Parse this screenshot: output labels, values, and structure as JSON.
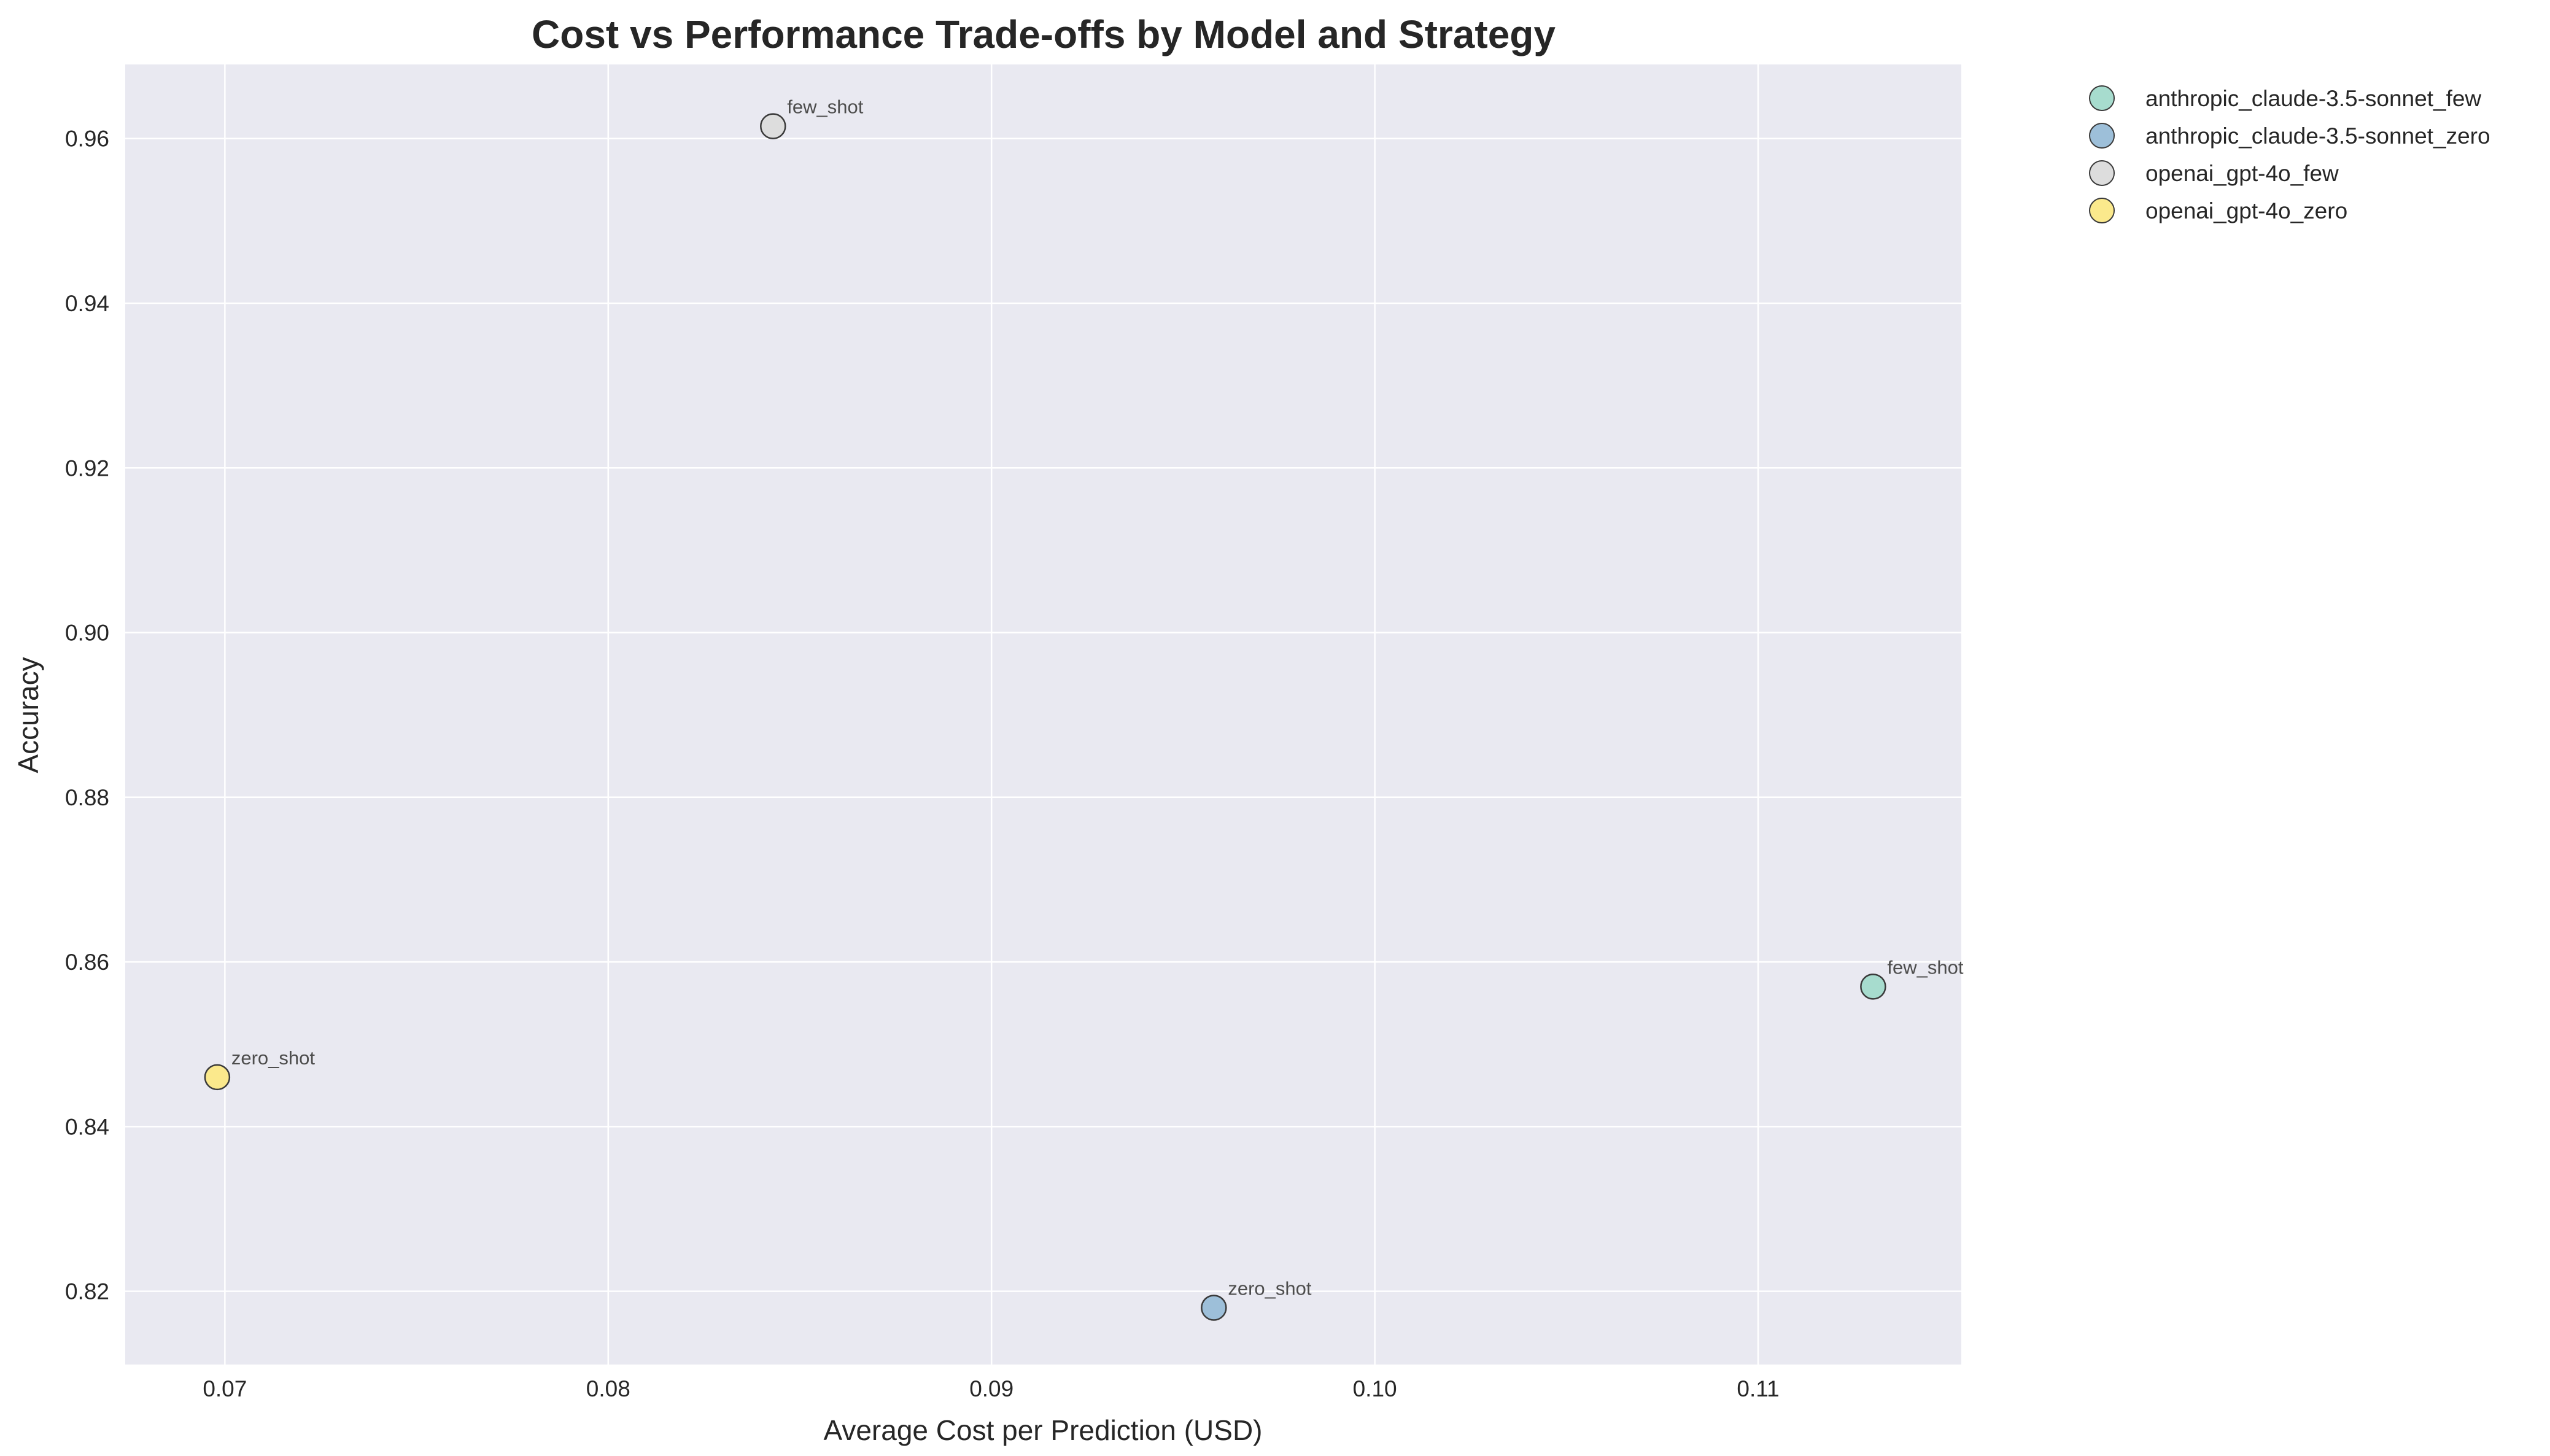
{
  "chart_data": {
    "type": "scatter",
    "title": "Cost vs Performance Trade-offs by Model and Strategy",
    "xlabel": "Average Cost per Prediction (USD)",
    "ylabel": "Accuracy",
    "xlim": [
      0.0674,
      0.1153
    ],
    "ylim": [
      0.8111,
      0.969
    ],
    "xticks": [
      "0.07",
      "0.08",
      "0.09",
      "0.10",
      "0.11"
    ],
    "xtick_values": [
      0.07,
      0.08,
      0.09,
      0.1,
      0.11
    ],
    "yticks": [
      "0.82",
      "0.84",
      "0.86",
      "0.88",
      "0.90",
      "0.92",
      "0.94",
      "0.96"
    ],
    "ytick_values": [
      0.82,
      0.84,
      0.86,
      0.88,
      0.9,
      0.92,
      0.94,
      0.96
    ],
    "grid": true,
    "legend_position": "outside-top-right",
    "background_color": "#e9e9f1",
    "series": [
      {
        "name": "anthropic_claude-3.5-sonnet_few",
        "color": "#a7dcce",
        "x": 0.113,
        "y": 0.857,
        "label": "few_shot"
      },
      {
        "name": "anthropic_claude-3.5-sonnet_zero",
        "color": "#9dbfd9",
        "x": 0.0958,
        "y": 0.818,
        "label": "zero_shot"
      },
      {
        "name": "openai_gpt-4o_few",
        "color": "#dddddd",
        "x": 0.0843,
        "y": 0.9615,
        "label": "few_shot"
      },
      {
        "name": "openai_gpt-4o_zero",
        "color": "#fbe98c",
        "x": 0.0698,
        "y": 0.846,
        "label": "zero_shot"
      }
    ]
  }
}
